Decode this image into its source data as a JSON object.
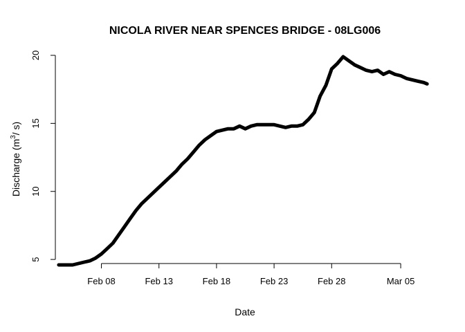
{
  "chart_data": {
    "type": "line",
    "title": "NICOLA RIVER NEAR SPENCES BRIDGE - 08LG006",
    "xlabel": "Date",
    "ylabel": {
      "prefix": "Discharge (m",
      "sup": "3",
      "suffix": "/ s)"
    },
    "xlim": [
      "2024-02-04",
      "2024-03-08"
    ],
    "ylim": [
      4.7,
      20
    ],
    "x_ticks": [
      {
        "date": "2024-02-08",
        "label": "Feb 08"
      },
      {
        "date": "2024-02-13",
        "label": "Feb 13"
      },
      {
        "date": "2024-02-18",
        "label": "Feb 18"
      },
      {
        "date": "2024-02-23",
        "label": "Feb 23"
      },
      {
        "date": "2024-02-28",
        "label": "Feb 28"
      },
      {
        "date": "2024-03-05",
        "label": "Mar 05"
      }
    ],
    "y_ticks": [
      5,
      10,
      15,
      20
    ],
    "grid": false,
    "series": [
      {
        "color": "#000000",
        "points": [
          [
            "2024-02-04 07:00",
            4.6
          ],
          [
            "2024-02-05 00:00",
            4.6
          ],
          [
            "2024-02-05 12:00",
            4.6
          ],
          [
            "2024-02-06 00:00",
            4.7
          ],
          [
            "2024-02-06 12:00",
            4.8
          ],
          [
            "2024-02-07 00:00",
            4.9
          ],
          [
            "2024-02-07 12:00",
            5.1
          ],
          [
            "2024-02-08 00:00",
            5.4
          ],
          [
            "2024-02-08 12:00",
            5.8
          ],
          [
            "2024-02-09 00:00",
            6.2
          ],
          [
            "2024-02-09 12:00",
            6.8
          ],
          [
            "2024-02-10 00:00",
            7.4
          ],
          [
            "2024-02-10 12:00",
            8.0
          ],
          [
            "2024-02-11 00:00",
            8.6
          ],
          [
            "2024-02-11 12:00",
            9.1
          ],
          [
            "2024-02-12 00:00",
            9.5
          ],
          [
            "2024-02-12 12:00",
            9.9
          ],
          [
            "2024-02-13 00:00",
            10.3
          ],
          [
            "2024-02-13 12:00",
            10.7
          ],
          [
            "2024-02-14 00:00",
            11.1
          ],
          [
            "2024-02-14 12:00",
            11.5
          ],
          [
            "2024-02-15 00:00",
            12.0
          ],
          [
            "2024-02-15 12:00",
            12.4
          ],
          [
            "2024-02-16 00:00",
            12.9
          ],
          [
            "2024-02-16 12:00",
            13.4
          ],
          [
            "2024-02-17 00:00",
            13.8
          ],
          [
            "2024-02-17 12:00",
            14.1
          ],
          [
            "2024-02-18 00:00",
            14.4
          ],
          [
            "2024-02-18 12:00",
            14.5
          ],
          [
            "2024-02-19 00:00",
            14.6
          ],
          [
            "2024-02-19 12:00",
            14.6
          ],
          [
            "2024-02-20 00:00",
            14.8
          ],
          [
            "2024-02-20 12:00",
            14.6
          ],
          [
            "2024-02-21 00:00",
            14.8
          ],
          [
            "2024-02-21 12:00",
            14.9
          ],
          [
            "2024-02-22 00:00",
            14.9
          ],
          [
            "2024-02-22 12:00",
            14.9
          ],
          [
            "2024-02-23 00:00",
            14.9
          ],
          [
            "2024-02-23 12:00",
            14.8
          ],
          [
            "2024-02-24 00:00",
            14.7
          ],
          [
            "2024-02-24 12:00",
            14.8
          ],
          [
            "2024-02-25 00:00",
            14.8
          ],
          [
            "2024-02-25 12:00",
            14.9
          ],
          [
            "2024-02-26 00:00",
            15.3
          ],
          [
            "2024-02-26 12:00",
            15.8
          ],
          [
            "2024-02-27 00:00",
            17.0
          ],
          [
            "2024-02-27 12:00",
            17.8
          ],
          [
            "2024-02-28 00:00",
            19.0
          ],
          [
            "2024-02-28 12:00",
            19.4
          ],
          [
            "2024-02-29 00:00",
            19.9
          ],
          [
            "2024-02-29 12:00",
            19.6
          ],
          [
            "2024-03-01 00:00",
            19.3
          ],
          [
            "2024-03-01 12:00",
            19.1
          ],
          [
            "2024-03-02 00:00",
            18.9
          ],
          [
            "2024-03-02 12:00",
            18.8
          ],
          [
            "2024-03-03 00:00",
            18.9
          ],
          [
            "2024-03-03 12:00",
            18.6
          ],
          [
            "2024-03-04 00:00",
            18.8
          ],
          [
            "2024-03-04 12:00",
            18.6
          ],
          [
            "2024-03-05 00:00",
            18.5
          ],
          [
            "2024-03-05 12:00",
            18.3
          ],
          [
            "2024-03-06 00:00",
            18.2
          ],
          [
            "2024-03-06 12:00",
            18.1
          ],
          [
            "2024-03-07 00:00",
            18.0
          ],
          [
            "2024-03-07 07:00",
            17.9
          ]
        ]
      }
    ]
  }
}
